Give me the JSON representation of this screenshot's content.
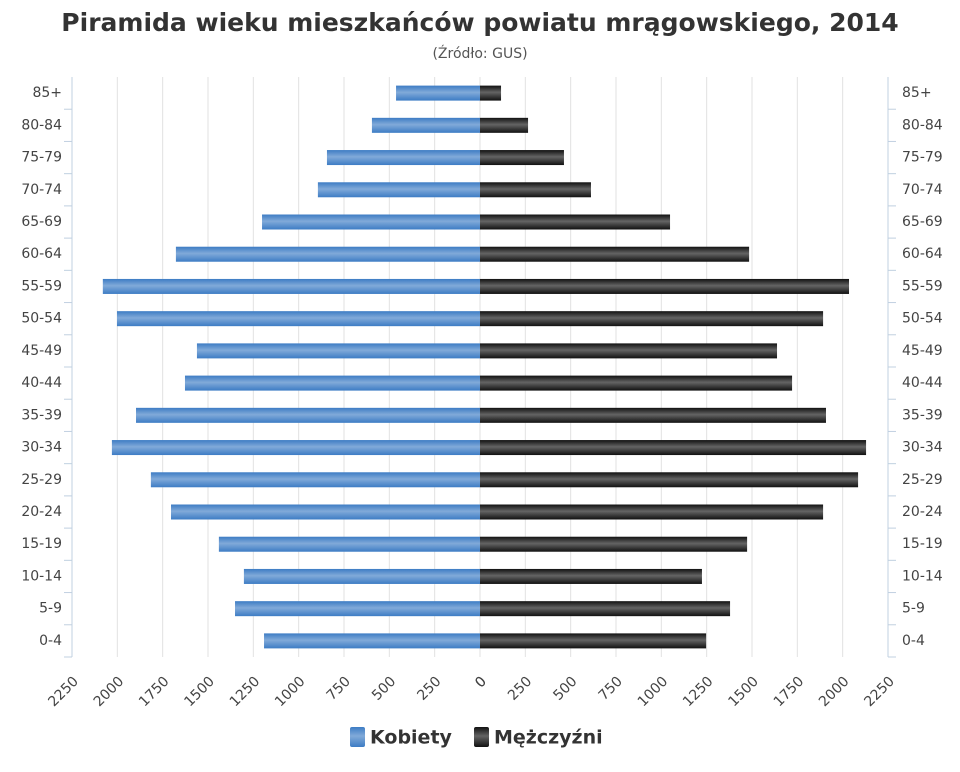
{
  "chart_data": {
    "type": "pyramid",
    "title": "Piramida wieku mieszkańców powiatu mrągowskiego, 2014",
    "subtitle": "(Źródło: GUS)",
    "categories": [
      "0-4",
      "5-9",
      "10-14",
      "15-19",
      "20-24",
      "25-29",
      "30-34",
      "35-39",
      "40-44",
      "45-49",
      "50-54",
      "55-59",
      "60-64",
      "65-69",
      "70-74",
      "75-79",
      "80-84",
      "85+"
    ],
    "series": [
      {
        "name": "Kobiety",
        "color": "#3d7cc4",
        "side": "left",
        "values": [
          1191,
          1351,
          1302,
          1440,
          1704,
          1815,
          2030,
          1897,
          1627,
          1561,
          2002,
          2080,
          1677,
          1202,
          894,
          844,
          596,
          463
        ]
      },
      {
        "name": "Mężczyźni",
        "color": "#111111",
        "side": "right",
        "values": [
          1247,
          1379,
          1224,
          1473,
          1892,
          2085,
          2129,
          1908,
          1721,
          1638,
          1892,
          2035,
          1484,
          1048,
          612,
          463,
          265,
          116
        ]
      }
    ],
    "xlim": [
      0,
      2250
    ],
    "xticks": [
      0,
      250,
      500,
      750,
      1000,
      1250,
      1500,
      1750,
      2000,
      2250
    ],
    "grid": true
  }
}
